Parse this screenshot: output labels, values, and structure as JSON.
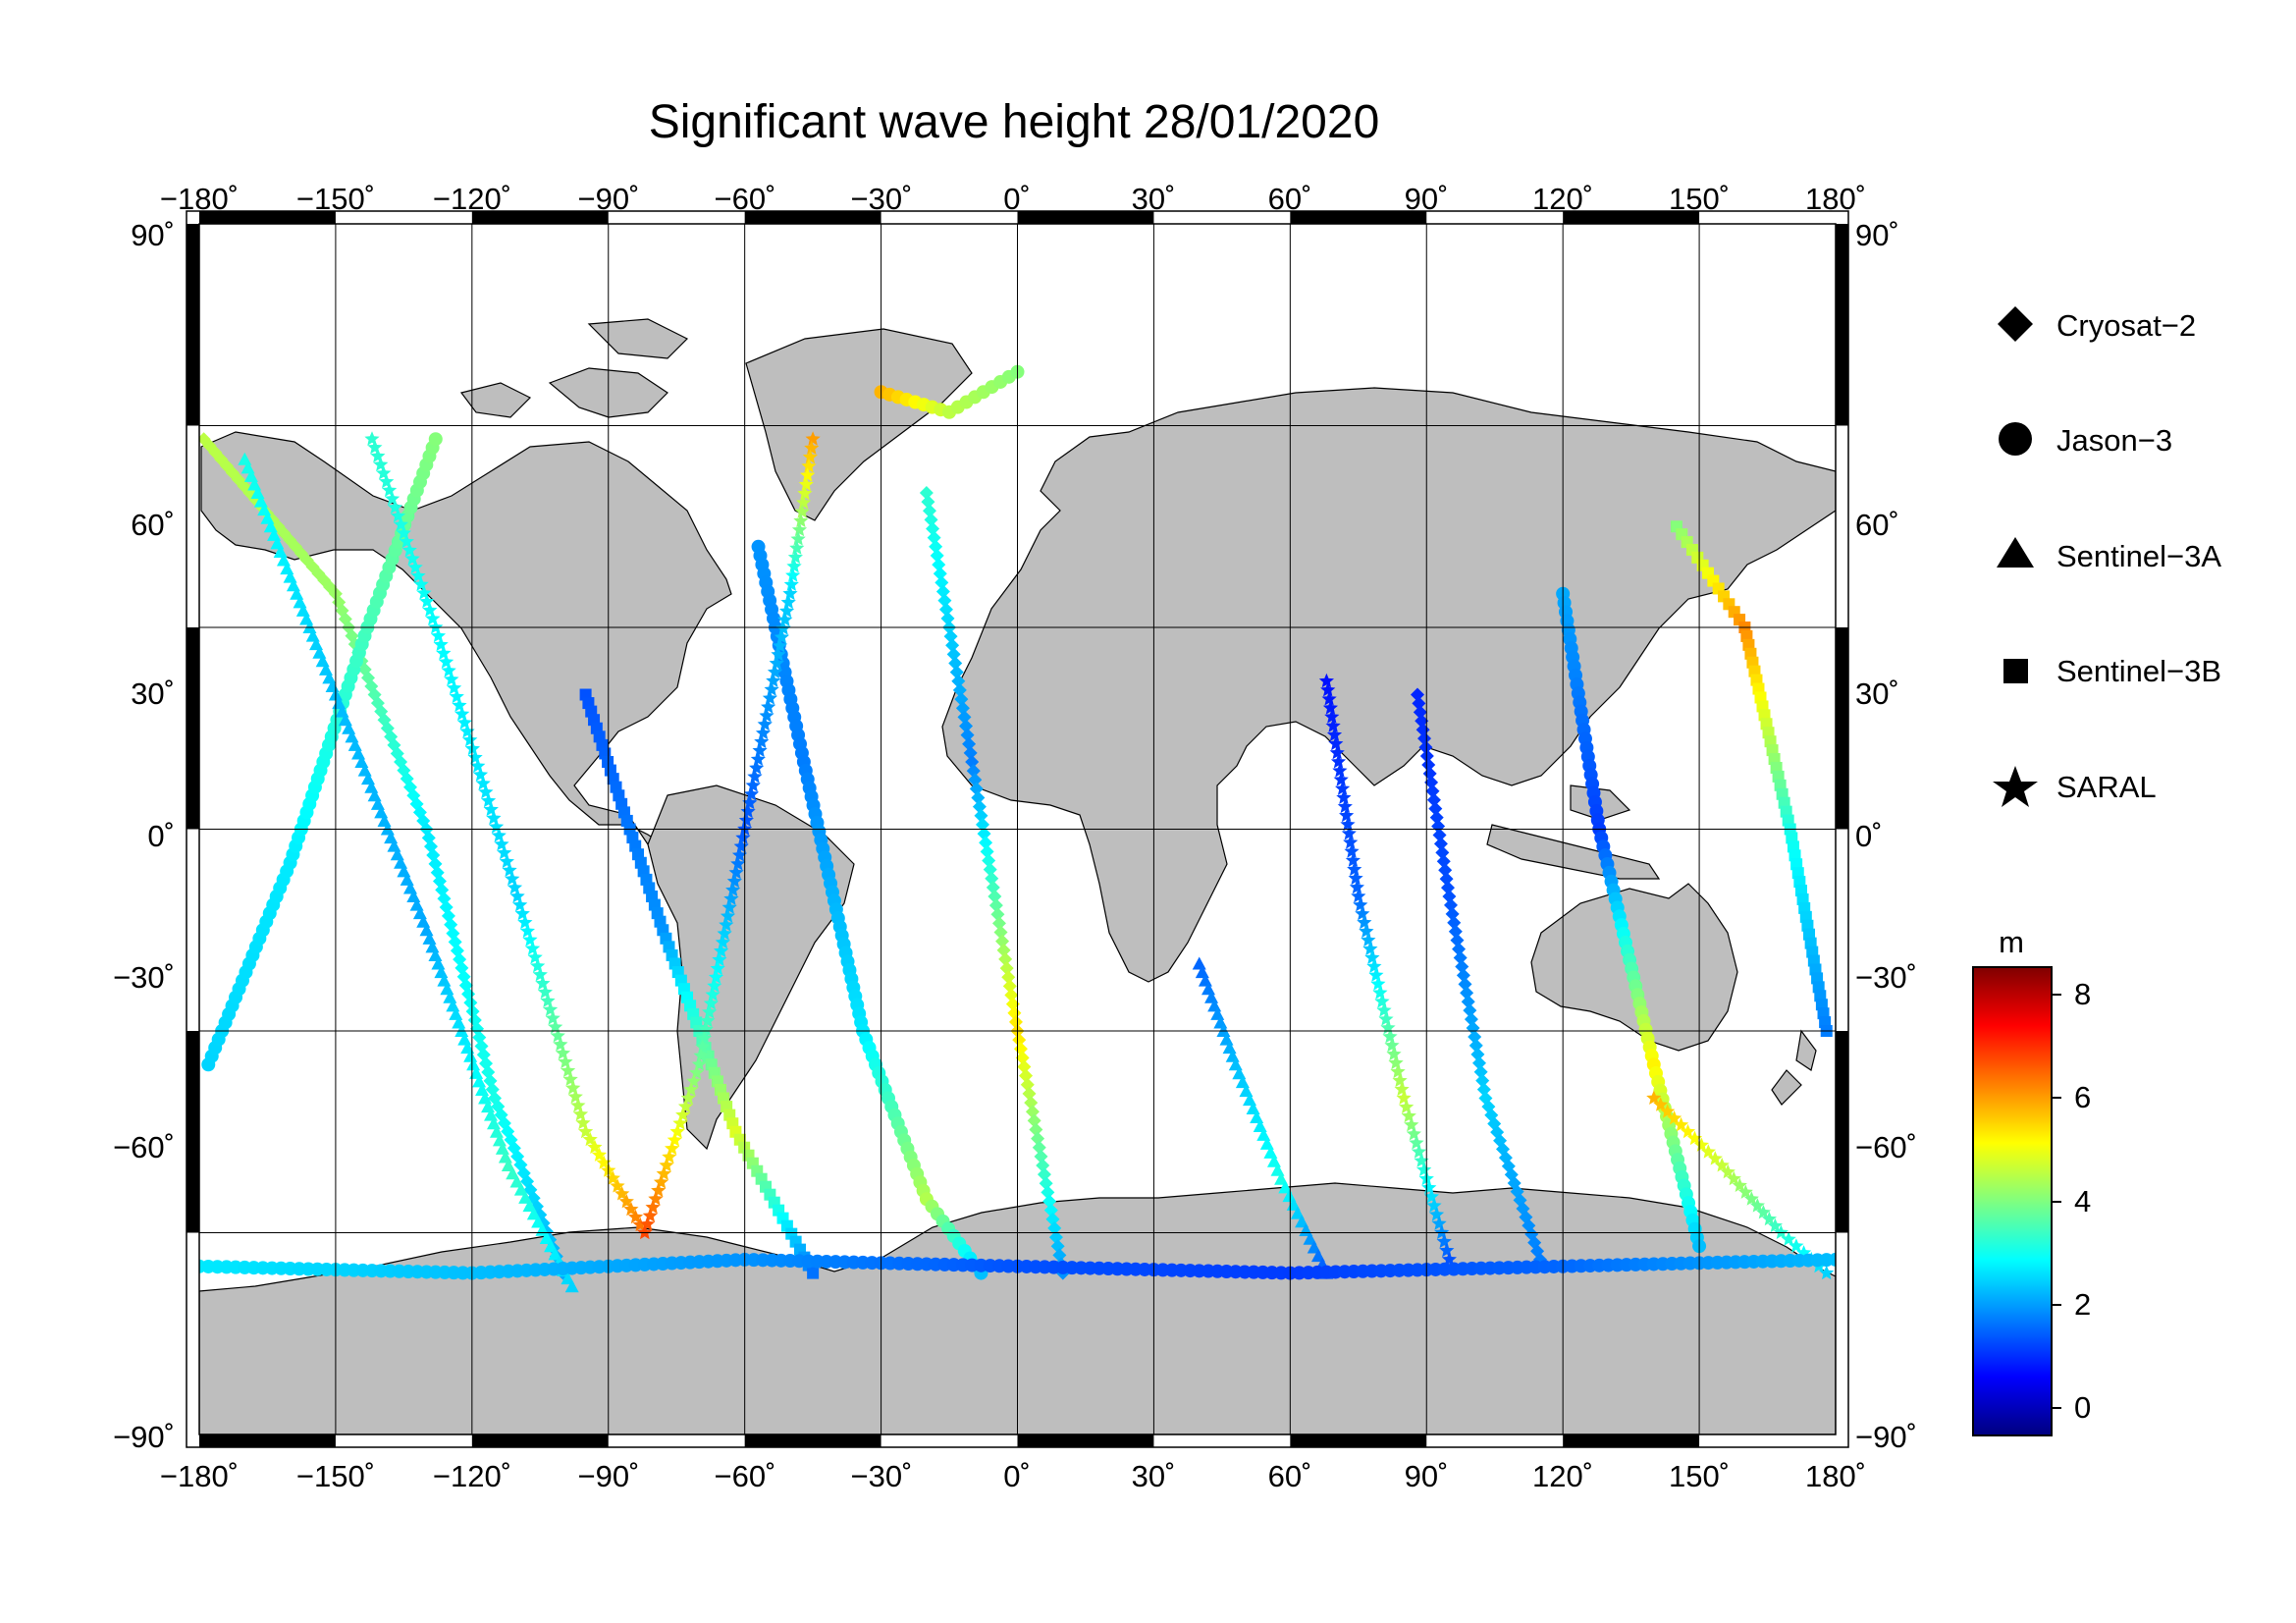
{
  "chart_data": {
    "type": "scatter",
    "title": "Significant wave height 28/01/2020",
    "x_ticks": [
      "−180˚",
      "−150˚",
      "−120˚",
      "−90˚",
      "−60˚",
      "−30˚",
      "0˚",
      "30˚",
      "60˚",
      "90˚",
      "120˚",
      "150˚",
      "180˚"
    ],
    "y_ticks": [
      "90˚",
      "60˚",
      "30˚",
      "0˚",
      "−30˚",
      "−60˚",
      "−90˚"
    ],
    "xlim": [
      -180,
      180
    ],
    "ylim": [
      -90,
      90
    ],
    "grid": true,
    "legend_position": "right",
    "legend": [
      {
        "name": "Cryosat−2",
        "marker": "diamond"
      },
      {
        "name": "Jason−3",
        "marker": "circle"
      },
      {
        "name": "Sentinel−3A",
        "marker": "triangle"
      },
      {
        "name": "Sentinel−3B",
        "marker": "square"
      },
      {
        "name": "SARAL",
        "marker": "star"
      }
    ],
    "colorbar": {
      "unit": "m",
      "ticks": [
        "8",
        "6",
        "4",
        "2",
        "0"
      ],
      "range": [
        -0.7,
        8.6
      ],
      "colormap": "jet"
    },
    "land_color": "#bebebe",
    "tracks": [
      {
        "mission": "Cryosat−2",
        "lon": [
          -179,
          -150,
          -130,
          -115,
          -100
        ],
        "lat": [
          58,
          35,
          0,
          -40,
          -66
        ],
        "swh": [
          4.5,
          4.2,
          2.6,
          3.0,
          2.0
        ]
      },
      {
        "mission": "Jason−3",
        "lon": [
          -178,
          -160,
          -143,
          -128
        ],
        "lat": [
          -35,
          -5,
          30,
          58
        ],
        "swh": [
          2.4,
          2.6,
          3.4,
          4.0
        ]
      },
      {
        "mission": "Sentinel−3A",
        "lon": [
          -170,
          -150,
          -130,
          -112,
          -98
        ],
        "lat": [
          55,
          20,
          -15,
          -50,
          -68
        ],
        "swh": [
          3.0,
          2.2,
          2.0,
          3.3,
          2.4
        ]
      },
      {
        "mission": "SARAL",
        "lon": [
          -142,
          -128,
          -110,
          -95,
          -82
        ],
        "lat": [
          58,
          30,
          -10,
          -45,
          -60
        ],
        "swh": [
          3.2,
          2.8,
          2.4,
          4.6,
          6.5
        ]
      },
      {
        "mission": "Sentinel−3B",
        "lon": [
          -95,
          -78,
          -62,
          -45
        ],
        "lat": [
          20,
          -15,
          -45,
          -66
        ],
        "swh": [
          1.2,
          1.8,
          4.8,
          1.5
        ]
      },
      {
        "mission": "Jason−3",
        "lon": [
          -57,
          -47,
          -34,
          -20,
          -8
        ],
        "lat": [
          42,
          10,
          -30,
          -55,
          -66
        ],
        "swh": [
          1.8,
          1.6,
          2.6,
          4.4,
          2.2
        ]
      },
      {
        "mission": "SARAL",
        "lon": [
          -45,
          -50,
          -60,
          -70,
          -82
        ],
        "lat": [
          58,
          35,
          0,
          -35,
          -60
        ],
        "swh": [
          6.0,
          2.4,
          1.2,
          3.8,
          6.8
        ]
      },
      {
        "mission": "Cryosat−2",
        "lon": [
          -20,
          -10,
          0,
          10
        ],
        "lat": [
          50,
          10,
          -30,
          -66
        ],
        "swh": [
          3.2,
          1.6,
          5.4,
          1.8
        ]
      },
      {
        "mission": "Jason−3",
        "lon": [
          -30,
          -15,
          0
        ],
        "lat": [
          65,
          62,
          68
        ],
        "swh": [
          5.8,
          4.5,
          4.0
        ]
      },
      {
        "mission": "Sentinel−3A",
        "lon": [
          40,
          48,
          58,
          68
        ],
        "lat": [
          -20,
          -35,
          -52,
          -66
        ],
        "swh": [
          1.4,
          2.2,
          3.0,
          1.2
        ]
      },
      {
        "mission": "SARAL",
        "lon": [
          68,
          75,
          85,
          95
        ],
        "lat": [
          22,
          -10,
          -40,
          -64
        ],
        "swh": [
          0.6,
          1.4,
          4.6,
          1.2
        ]
      },
      {
        "mission": "Cryosat−2",
        "lon": [
          88,
          95,
          103,
          115
        ],
        "lat": [
          20,
          -10,
          -40,
          -64
        ],
        "swh": [
          0.8,
          1.2,
          2.4,
          1.6
        ]
      },
      {
        "mission": "Jason−3",
        "lon": [
          120,
          128,
          140,
          150
        ],
        "lat": [
          35,
          0,
          -35,
          -62
        ],
        "swh": [
          2.0,
          1.0,
          5.2,
          2.2
        ]
      },
      {
        "mission": "Sentinel−3B",
        "lon": [
          145,
          160,
          170,
          178
        ],
        "lat": [
          45,
          30,
          0,
          -30
        ],
        "swh": [
          4.0,
          6.2,
          3.0,
          1.6
        ]
      },
      {
        "mission": "SARAL",
        "lon": [
          140,
          155,
          168,
          178
        ],
        "lat": [
          -40,
          -50,
          -60,
          -66
        ],
        "swh": [
          5.8,
          4.6,
          3.2,
          2.4
        ]
      },
      {
        "mission": "Jason−3",
        "lon": [
          -180,
          -120,
          -60,
          0,
          60,
          120,
          180
        ],
        "lat": [
          -65,
          -66,
          -64,
          -65,
          -66,
          -65,
          -64
        ],
        "swh": [
          2.6,
          2.2,
          1.8,
          1.2,
          1.0,
          1.4,
          2.2
        ]
      }
    ]
  }
}
